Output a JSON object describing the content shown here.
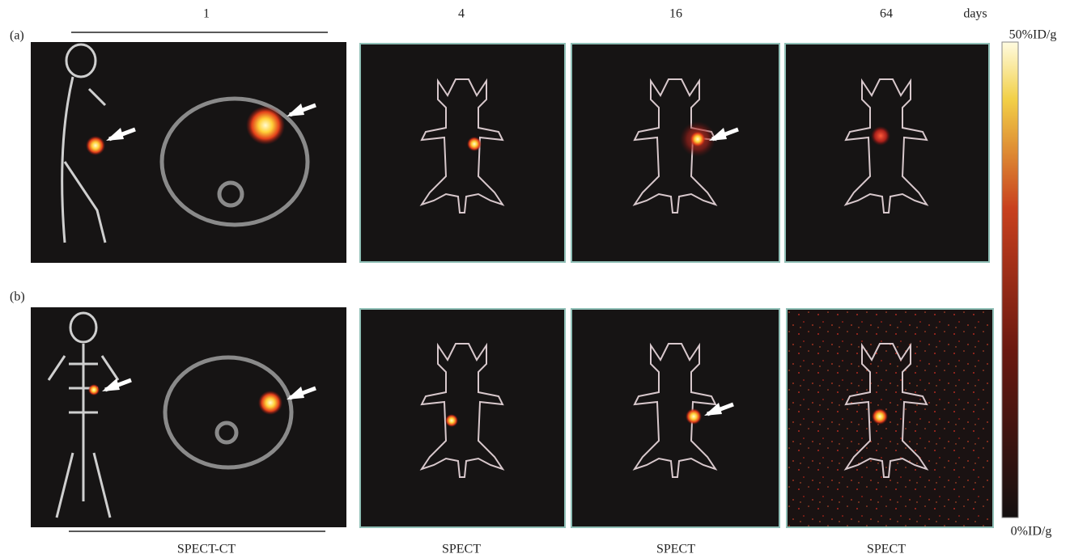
{
  "figure": {
    "row_labels": [
      "(a)",
      "(b)"
    ],
    "column_labels": [
      "1",
      "4",
      "16",
      "64"
    ],
    "time_unit": "days",
    "bottom_labels": [
      "SPECT-CT",
      "SPECT",
      "SPECT",
      "SPECT"
    ],
    "colorbar": {
      "max_label": "50%ID/g",
      "min_label": "0%ID/g"
    }
  }
}
